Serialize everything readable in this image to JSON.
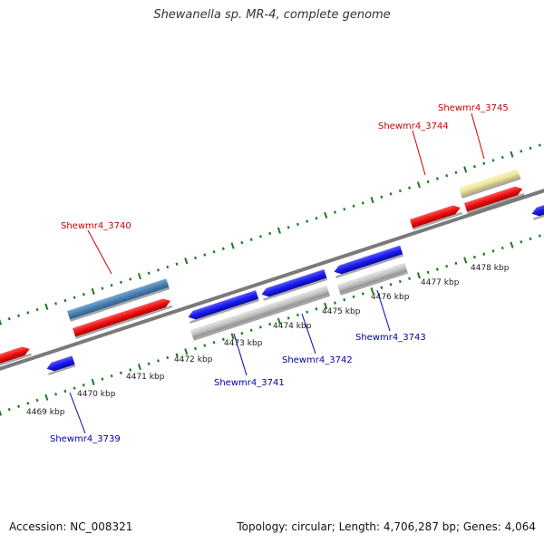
{
  "title": "Shewanella sp. MR-4, complete genome",
  "accession": "Accession: NC_008321",
  "stats": "Topology: circular; Length: 4,706,287 bp; Genes: 4,064",
  "colors": {
    "backbone": "#7a7a7a",
    "ruler": "#1e7a1e",
    "forward_gene": "#ee1111",
    "reverse_gene": "#1a1aee",
    "forward_label": "#cc0000",
    "reverse_label": "#0000aa",
    "misc_blue": "#4a7fb0",
    "misc_gray": "#c0c0c0",
    "misc_yellow": "#ede7a0"
  },
  "scale_labels": [
    "4469 kbp",
    "4470 kbp",
    "4471 kbp",
    "4472 kbp",
    "4473 kbp",
    "4474 kbp",
    "4475 kbp",
    "4476 kbp",
    "4477 kbp",
    "4478 kbp"
  ],
  "gene_labels": [
    {
      "text": "Shewmr4_3740",
      "strand": "forward"
    },
    {
      "text": "Shewmr4_3744",
      "strand": "forward"
    },
    {
      "text": "Shewmr4_3745",
      "strand": "forward"
    },
    {
      "text": "Shewmr4_3739",
      "strand": "reverse"
    },
    {
      "text": "Shewmr4_3741",
      "strand": "reverse"
    },
    {
      "text": "Shewmr4_3742",
      "strand": "reverse"
    },
    {
      "text": "Shewmr4_3743",
      "strand": "reverse"
    }
  ]
}
